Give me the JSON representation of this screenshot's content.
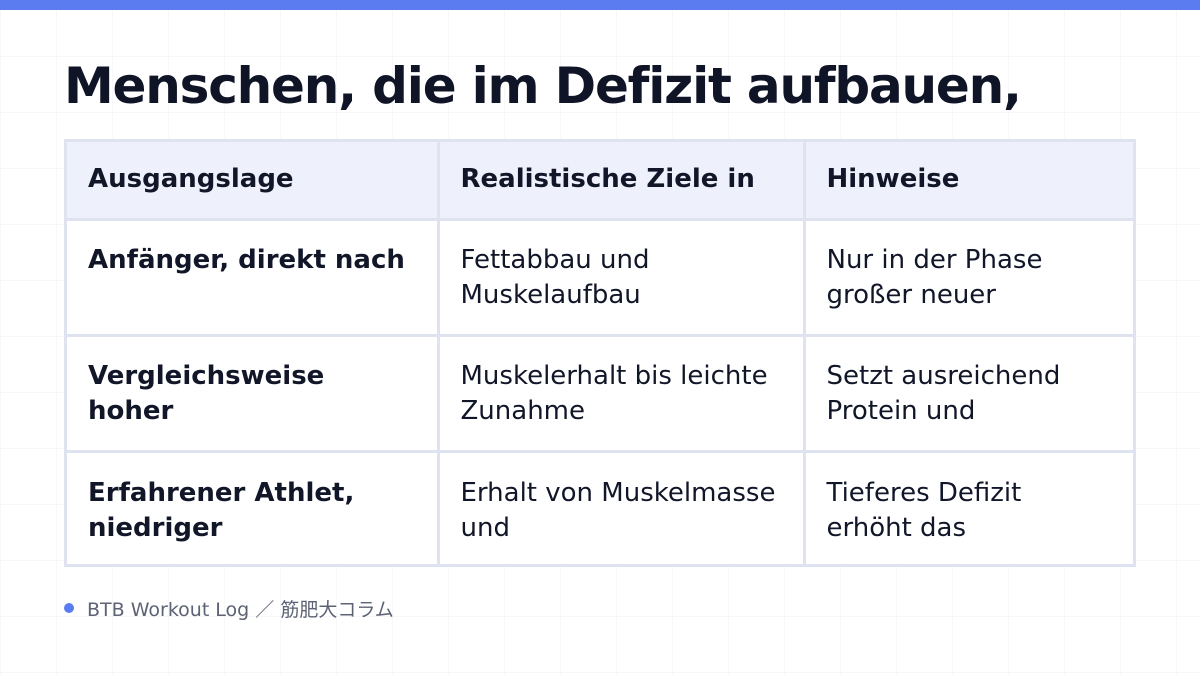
{
  "colors": {
    "accent": "#5b7cf0",
    "title_text": "#0f1426",
    "header_background": "#eef0fb",
    "table_border": "#dfe3f0",
    "footer_text": "#5d6274"
  },
  "title": "Menschen, die im Defizit aufbauen,",
  "table": {
    "headers": [
      "Ausgangslage",
      "Realistische Ziele in",
      "Hinweise"
    ],
    "rows": [
      [
        "Anfänger, direkt nach",
        "Fettabbau und Muskelaufbau",
        "Nur in der Phase großer neuer"
      ],
      [
        "Vergleichsweise hoher",
        "Muskelerhalt bis leichte Zunahme",
        "Setzt ausreichend Protein und"
      ],
      [
        "Erfahrener Athlet, niedriger",
        "Erhalt von Muskelmasse und",
        "Tieferes Defizit erhöht das"
      ]
    ]
  },
  "footer": {
    "text": "BTB Workout Log ／ 筋肥大コラム",
    "bullet_icon": "dot-icon"
  }
}
